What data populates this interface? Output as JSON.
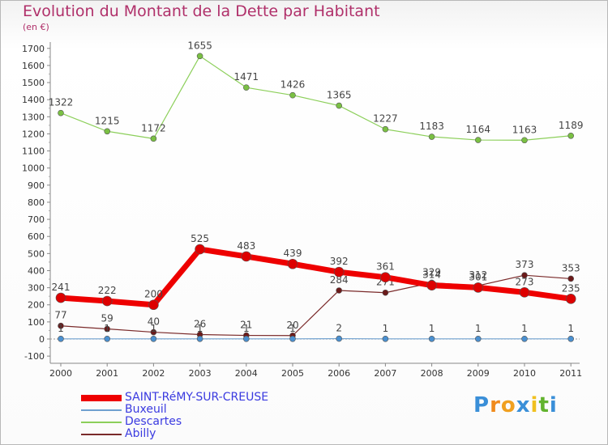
{
  "header": {
    "title": "Evolution du Montant de la Dette par Habitant",
    "subtitle": "(en €)"
  },
  "brand": {
    "name": "Proxiti"
  },
  "chart_data": {
    "type": "line",
    "title": "Evolution du Montant de la Dette par Habitant",
    "subtitle": "(en €)",
    "categories": [
      "2000",
      "2001",
      "2002",
      "2003",
      "2004",
      "2005",
      "2006",
      "2007",
      "2008",
      "2009",
      "2010",
      "2011"
    ],
    "ylim": [
      -100,
      1700
    ],
    "yticks": [
      -100,
      0,
      100,
      200,
      300,
      400,
      500,
      600,
      700,
      800,
      900,
      1000,
      1100,
      1200,
      1300,
      1400,
      1500,
      1600,
      1700
    ],
    "grid": false,
    "legend_position": "bottom-left",
    "series": [
      {
        "name": "Descartes",
        "color": "#8ccf5a",
        "marker": "#7ac043",
        "values": [
          1322,
          1215,
          1172,
          1655,
          1471,
          1426,
          1365,
          1227,
          1183,
          1164,
          1163,
          1189
        ]
      },
      {
        "name": "Abilly",
        "color": "#7a2a2a",
        "marker": "#6b1a1a",
        "values": [
          77,
          59,
          40,
          26,
          21,
          20,
          284,
          271,
          329,
          312,
          373,
          353
        ]
      },
      {
        "name": "Buxeuil",
        "color": "#6fa0cf",
        "marker": "#4a90d0",
        "values": [
          1,
          1,
          1,
          1,
          1,
          1,
          2,
          1,
          1,
          1,
          1,
          1
        ]
      },
      {
        "name": "SAINT-RéMY-SUR-CREUSE",
        "color": "#ee0000",
        "marker": "#dd0000",
        "values": [
          241,
          222,
          200,
          525,
          483,
          439,
          392,
          361,
          314,
          301,
          273,
          235
        ]
      }
    ],
    "legend_order": [
      "SAINT-RéMY-SUR-CREUSE",
      "Buxeuil",
      "Descartes",
      "Abilly"
    ]
  }
}
